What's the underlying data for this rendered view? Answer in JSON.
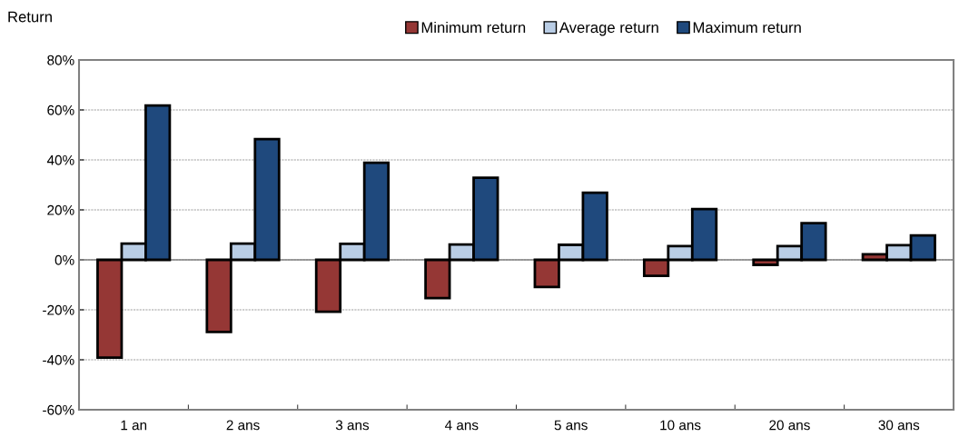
{
  "chart_data": {
    "type": "bar",
    "ylabel": "Return",
    "categories": [
      "1 an",
      "2 ans",
      "3 ans",
      "4 ans",
      "5 ans",
      "10 ans",
      "20 ans",
      "30 ans"
    ],
    "series": [
      {
        "name": "Minimum return",
        "color": "#953735",
        "values": [
          -39.1,
          -28.9,
          -20.8,
          -15.3,
          -10.9,
          -6.4,
          -2.0,
          2.2
        ]
      },
      {
        "name": "Average return",
        "color": "#b9cde5",
        "values": [
          6.5,
          6.5,
          6.4,
          6.1,
          6.0,
          5.5,
          5.5,
          5.9
        ]
      },
      {
        "name": "Maximum return",
        "color": "#1f497d",
        "values": [
          61.8,
          48.3,
          38.9,
          32.9,
          26.9,
          20.3,
          14.7,
          9.8
        ]
      }
    ],
    "ylim": [
      -60,
      80
    ],
    "yticks": [
      {
        "value": -60,
        "label": "-60%"
      },
      {
        "value": -40,
        "label": "-40%"
      },
      {
        "value": -20,
        "label": "-20%"
      },
      {
        "value": 0,
        "label": "0%"
      },
      {
        "value": 20,
        "label": "20%"
      },
      {
        "value": 40,
        "label": "40%"
      },
      {
        "value": 60,
        "label": "60%"
      },
      {
        "value": 80,
        "label": "80%"
      }
    ],
    "grid": "y",
    "legend": "top"
  }
}
